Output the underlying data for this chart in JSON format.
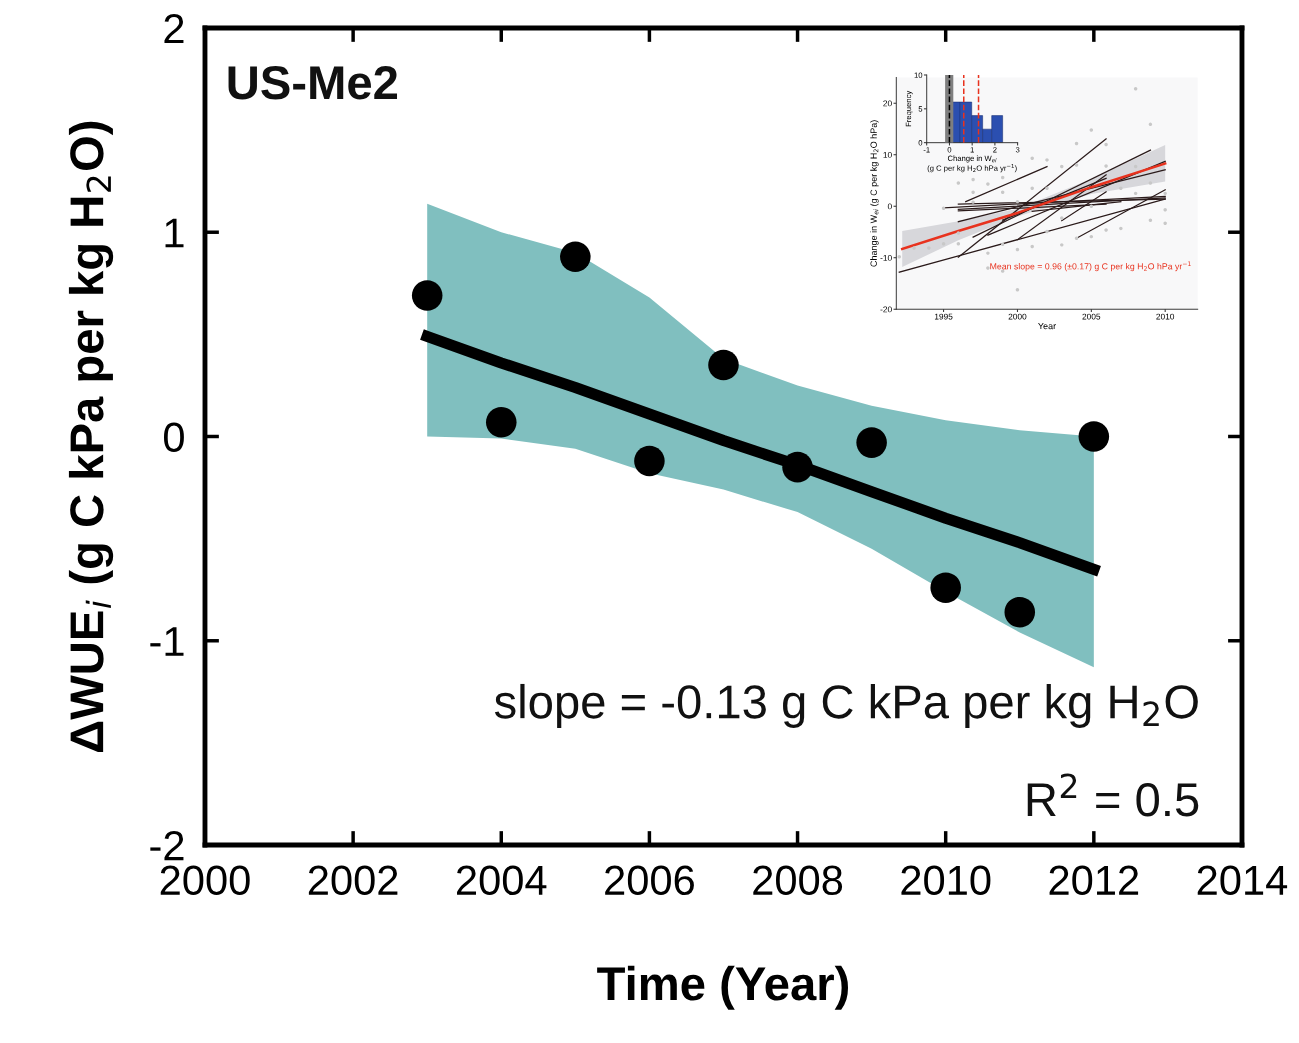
{
  "chart_data": [
    {
      "type": "scatter",
      "xlabel": "Time (Year)",
      "ylabel": "ΔWUE$_{i}$ (g C kPa per kg H$_{2}$O)",
      "x": [
        2003,
        2004,
        2005,
        2006,
        2007,
        2008,
        2009,
        2010,
        2011,
        2012
      ],
      "series": [
        {
          "type": "scatter",
          "color": "#000000",
          "marker": "circle",
          "values": [
            0.69,
            0.07,
            0.88,
            -0.12,
            0.35,
            -0.15,
            -0.03,
            -0.74,
            -0.86,
            0.0
          ]
        },
        {
          "type": "line",
          "color": "#000000",
          "marker": "none",
          "x": [
            2003,
            2004,
            2005,
            2006,
            2007,
            2008,
            2009,
            2010,
            2011,
            2012
          ],
          "values": [
            0.49,
            0.36,
            0.24,
            0.11,
            -0.02,
            -0.14,
            -0.27,
            -0.4,
            -0.52,
            -0.65
          ],
          "lower": [
            0.0,
            -0.01,
            -0.06,
            -0.18,
            -0.26,
            -0.37,
            -0.55,
            -0.76,
            -0.96,
            -1.13
          ],
          "upper": [
            1.14,
            1.0,
            0.9,
            0.68,
            0.38,
            0.25,
            0.15,
            0.08,
            0.03,
            0.0
          ]
        }
      ],
      "xlim": [
        2000,
        2014
      ],
      "xticks": [
        2000,
        2002,
        2004,
        2006,
        2008,
        2010,
        2012,
        2014
      ],
      "ylim": [
        -2,
        2
      ],
      "yticks": [
        -2,
        -1,
        0,
        1,
        2
      ],
      "grid": false,
      "legend": false,
      "annotations": [
        "US-Me2",
        "slope = -0.13 g C kPa per kg H$_{2}$O",
        "R$^{2}$ = 0.5"
      ]
    },
    {
      "type": "line",
      "xlabel": "Year",
      "ylabel": "Change in W$_{ei}$ (g C per kg H$_{2}$O hPa)",
      "series": [
        {
          "type": "scatter",
          "color": "#c8c8c8",
          "marker": "circle",
          "x": [
            1992,
            1993,
            1994,
            1995,
            1995,
            1996,
            1996,
            1996,
            1997,
            1997,
            1997,
            1998,
            1998,
            1998,
            1999,
            1999,
            1999,
            1999,
            2000,
            2000,
            2000,
            2001,
            2001,
            2001,
            2002,
            2002,
            2002,
            2003,
            2003,
            2003,
            2004,
            2004,
            2004,
            2005,
            2005,
            2005,
            2006,
            2006,
            2006,
            2007,
            2007,
            2008,
            2008,
            2008,
            2009,
            2009,
            2009,
            2010,
            2010,
            2010
          ],
          "values": [
            -9.8,
            -8.1,
            -8.1,
            -0.4,
            -7.3,
            4.5,
            -7.3,
            -5.2,
            5.2,
            2.7,
            0.8,
            4.3,
            -9.1,
            -12.0,
            5.6,
            2.7,
            -12.6,
            -7.4,
            -16.2,
            -8.4,
            0.9,
            9.3,
            -7.8,
            3.5,
            9.0,
            -4.9,
            3.5,
            -7.5,
            7.7,
            -2.3,
            12.2,
            -6.2,
            8.0,
            14.8,
            -5.9,
            0.0,
            12.0,
            -4.6,
            7.8,
            -4.3,
            3.5,
            22.8,
            7.7,
            2.5,
            15.9,
            -2.7,
            4.5,
            -3.3,
            2.5,
            -0.7
          ]
        },
        {
          "type": "line",
          "color": "#2a1a1a",
          "x": [
            1992,
            2010
          ],
          "values": [
            -12.8,
            1.4
          ]
        },
        {
          "type": "line",
          "color": "#2a1a1a",
          "x": [
            1996,
            2006
          ],
          "values": [
            -9.9,
            13.1
          ]
        },
        {
          "type": "line",
          "color": "#2a1a1a",
          "x": [
            1996.5,
            2002
          ],
          "values": [
            0.9,
            7.7
          ]
        },
        {
          "type": "line",
          "color": "#2a1a1a",
          "x": [
            1995,
            2010
          ],
          "values": [
            -0.3,
            1.9
          ]
        },
        {
          "type": "line",
          "color": "#2a1a1a",
          "x": [
            1996,
            2010
          ],
          "values": [
            -3.0,
            7.1
          ]
        },
        {
          "type": "line",
          "color": "#2a1a1a",
          "x": [
            1996,
            2010
          ],
          "values": [
            0.4,
            1.4
          ]
        },
        {
          "type": "line",
          "color": "#2a1a1a",
          "x": [
            2000,
            2006
          ],
          "values": [
            -6.5,
            6.1
          ]
        },
        {
          "type": "line",
          "color": "#2a1a1a",
          "x": [
            1997,
            2009
          ],
          "values": [
            -6.0,
            10.9
          ]
        },
        {
          "type": "line",
          "color": "#2a1a1a",
          "x": [
            1998,
            2010
          ],
          "values": [
            -5.6,
            8.7
          ]
        },
        {
          "type": "line",
          "color": "#2a1a1a",
          "x": [
            2003,
            2006
          ],
          "values": [
            -2.8,
            2.8
          ]
        },
        {
          "type": "line",
          "color": "#2a1a1a",
          "x": [
            2004,
            2010
          ],
          "values": [
            -6.2,
            3.2
          ]
        },
        {
          "type": "line",
          "color": "#2a1a1a",
          "x": [
            1996,
            2006
          ],
          "values": [
            -0.9,
            0.4
          ]
        },
        {
          "type": "line",
          "color": "#2a1a1a",
          "x": [
            1996,
            2010
          ],
          "values": [
            -0.6,
            1.6
          ]
        },
        {
          "type": "line",
          "color": "#2a1a1a",
          "x": [
            2001,
            2007
          ],
          "values": [
            -1.0,
            0.9
          ]
        },
        {
          "type": "line",
          "color": "#2a1a1a",
          "x": [
            1999,
            2006
          ],
          "values": [
            -2.7,
            5.4
          ]
        },
        {
          "type": "line",
          "color": "#e8321e",
          "x": [
            1992.2,
            1996,
            2000,
            2005,
            2010
          ],
          "values": [
            -8.3,
            -4.8,
            -1.3,
            3.7,
            8.3
          ],
          "lower": [
            -11.8,
            -6.6,
            -2.0,
            2.4,
            4.8
          ],
          "upper": [
            -4.8,
            -2.9,
            -0.5,
            5.3,
            11.9
          ]
        }
      ],
      "xlim": [
        1991.8,
        2012.2
      ],
      "xticks": [
        1995,
        2000,
        2005,
        2010
      ],
      "ylim": [
        -20,
        25
      ],
      "yticks": [
        -20,
        -10,
        0,
        10,
        20
      ],
      "grid": false,
      "legend": false,
      "annotations": [
        "Mean slope = 0.96 (±0.17) g C per kg H$_{2}$O hPa yr$^{−1}$"
      ]
    },
    {
      "type": "histogram",
      "xlabel": "Change in W$_{ei}$\n(g C per kg H$_{2}$O hPa yr$^{−1}$)",
      "ylabel": "Frequency",
      "bins": [
        0.03,
        0.47,
        0.98,
        1.46,
        1.86,
        2.34
      ],
      "values": [
        6,
        6,
        4,
        2,
        4
      ],
      "color": "#2b4fb0",
      "bands": [
        {
          "axis": "x",
          "from": -0.19,
          "to": 0.17,
          "color": "#7f7f7f"
        }
      ],
      "ref_lines": [
        {
          "axis": "x",
          "value": 0,
          "color": "#000000",
          "line_style": "dashed"
        },
        {
          "axis": "x",
          "value": 0.63,
          "color": "#e8321e",
          "line_style": "dashed"
        },
        {
          "axis": "x",
          "value": 1.28,
          "color": "#e8321e",
          "line_style": "dashed"
        }
      ],
      "xlim": [
        -1,
        3
      ],
      "xticks": [
        -1,
        0,
        1,
        2,
        3
      ],
      "ylim": [
        0,
        10
      ],
      "yticks": [
        0,
        5,
        10
      ],
      "grid": false,
      "legend": false
    }
  ]
}
